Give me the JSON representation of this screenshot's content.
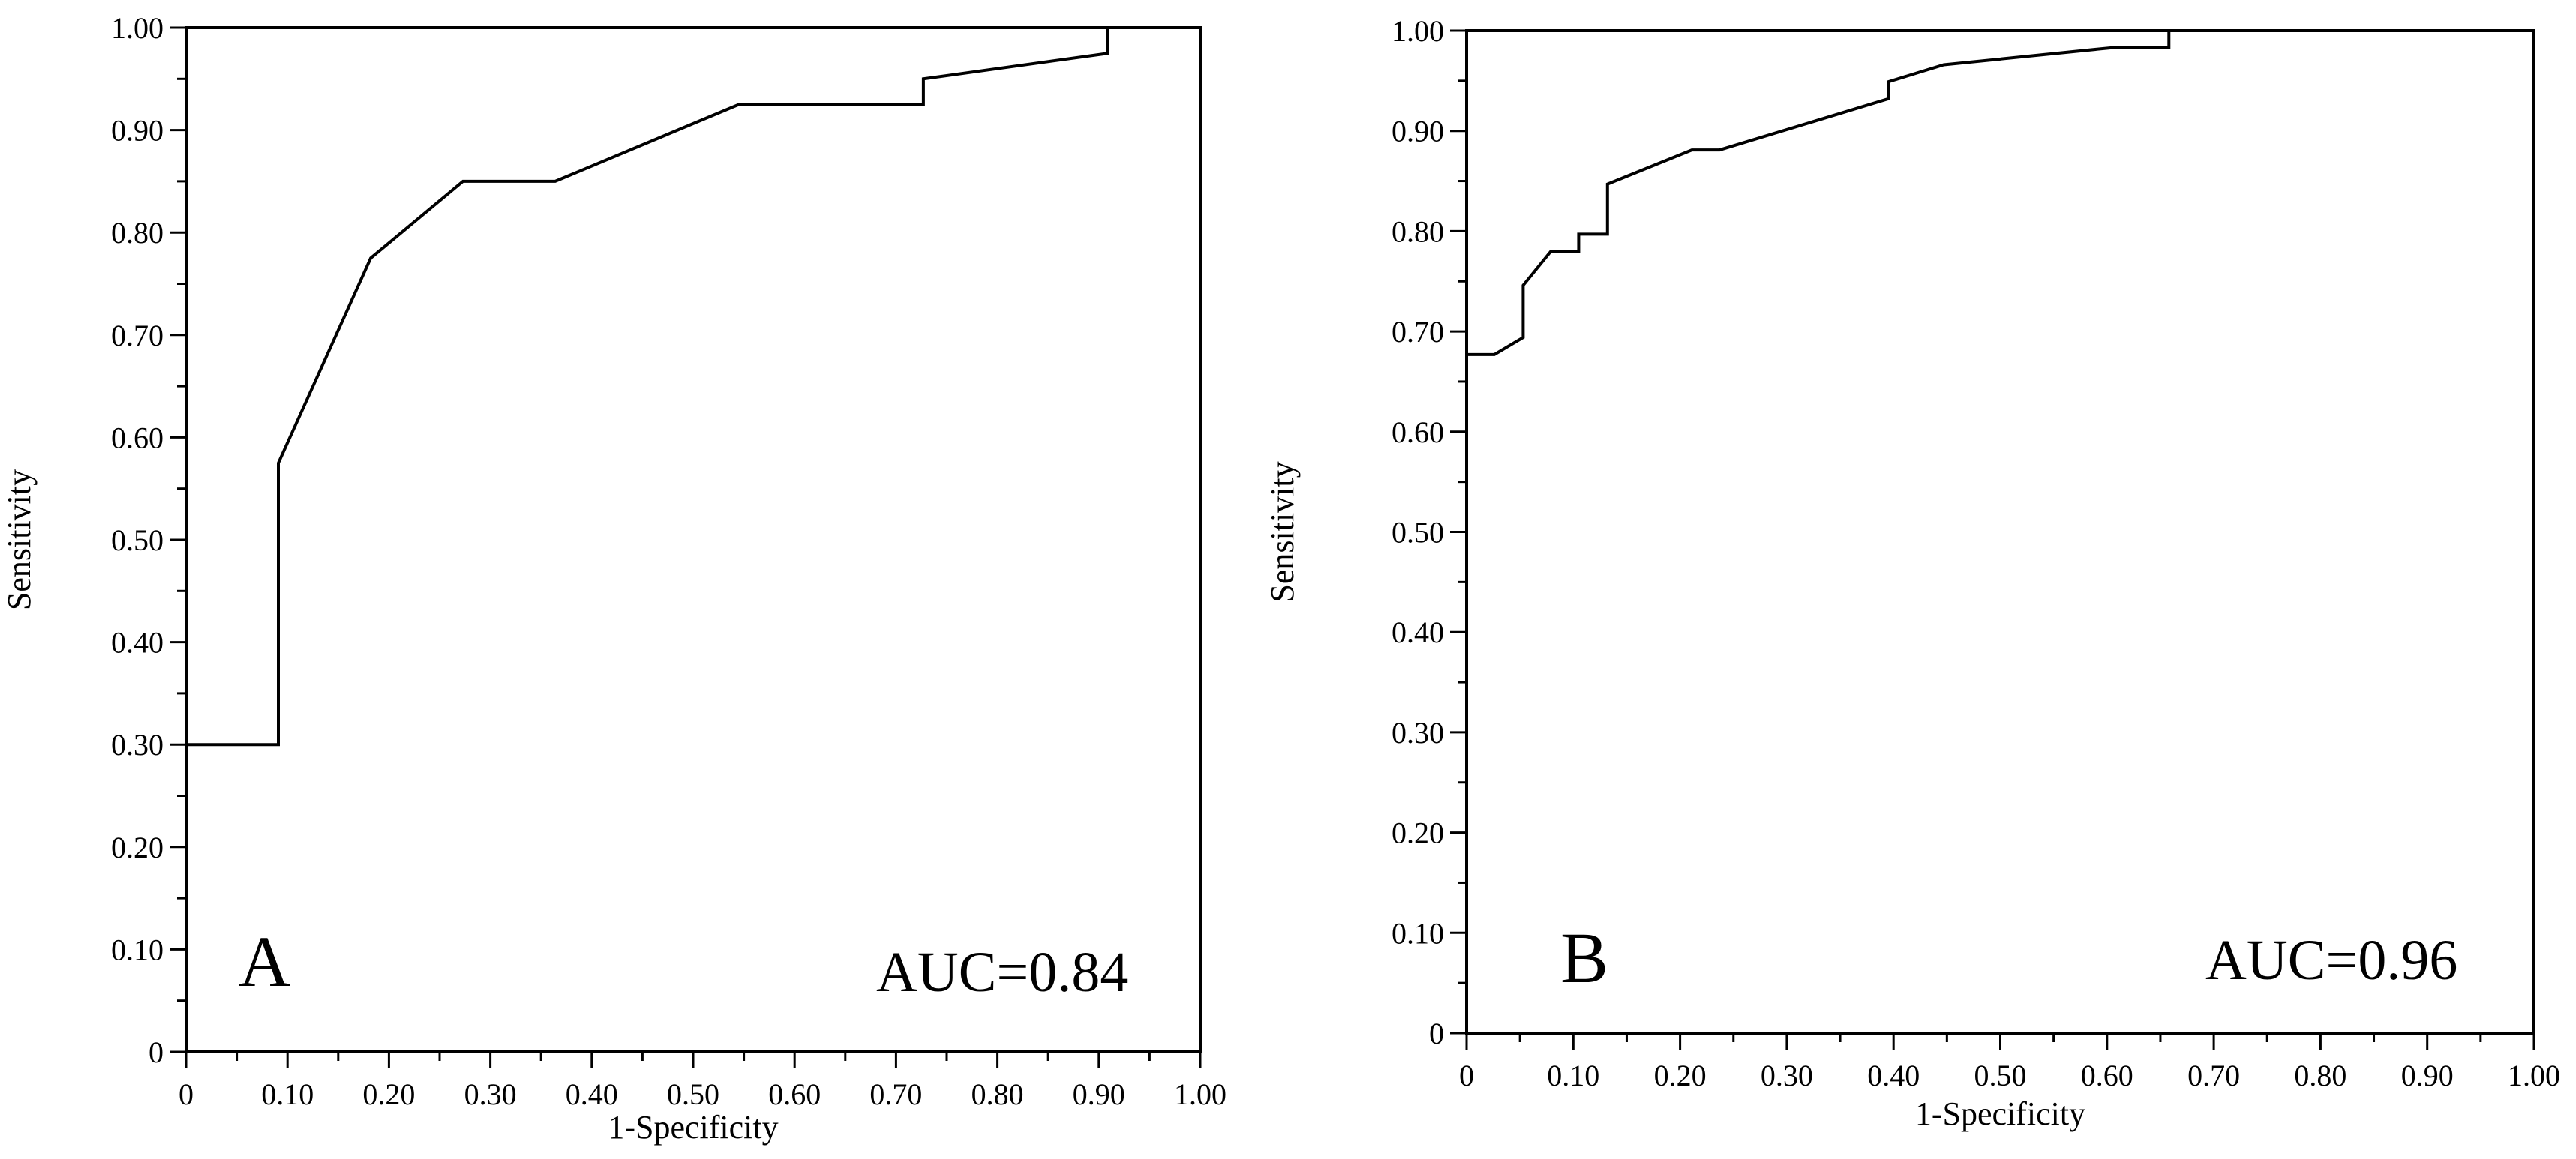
{
  "chart_data": [
    {
      "type": "line",
      "xlabel": "1-Specificity",
      "ylabel": "Sensitivity",
      "xlim": [
        0,
        1
      ],
      "ylim": [
        0,
        1
      ],
      "x_ticks": [
        "0",
        "0.10",
        "0.20",
        "0.30",
        "0.40",
        "0.50",
        "0.60",
        "0.70",
        "0.80",
        "0.90",
        "1.00"
      ],
      "y_ticks": [
        "0",
        "0.10",
        "0.20",
        "0.30",
        "0.40",
        "0.50",
        "0.60",
        "0.70",
        "0.80",
        "0.90",
        "1.00"
      ],
      "panel_label": "A",
      "annotation": "AUC=0.84",
      "series": [
        {
          "x": [
            0,
            0.091,
            0.091,
            0.182,
            0.273,
            0.364,
            0.545,
            0.727,
            0.727,
            0.909,
            0.909
          ],
          "y": [
            0.3,
            0.3,
            0.575,
            0.775,
            0.85,
            0.85,
            0.925,
            0.925,
            0.95,
            0.975,
            1.0
          ]
        }
      ]
    },
    {
      "type": "line",
      "xlabel": "1-Specificity",
      "ylabel": "Sensitivity",
      "xlim": [
        0,
        1
      ],
      "ylim": [
        0,
        1
      ],
      "x_ticks": [
        "0",
        "0.10",
        "0.20",
        "0.30",
        "0.40",
        "0.50",
        "0.60",
        "0.70",
        "0.80",
        "0.90",
        "1.00"
      ],
      "y_ticks": [
        "0",
        "0.10",
        "0.20",
        "0.30",
        "0.40",
        "0.50",
        "0.60",
        "0.70",
        "0.80",
        "0.90",
        "1.00"
      ],
      "panel_label": "B",
      "annotation": "AUC=0.96",
      "series": [
        {
          "x": [
            0,
            0.026,
            0.053,
            0.053,
            0.079,
            0.105,
            0.105,
            0.132,
            0.132,
            0.211,
            0.237,
            0.395,
            0.395,
            0.447,
            0.605,
            0.658,
            0.658
          ],
          "y": [
            0.677,
            0.677,
            0.694,
            0.746,
            0.78,
            0.78,
            0.797,
            0.797,
            0.847,
            0.881,
            0.881,
            0.932,
            0.949,
            0.966,
            0.983,
            0.983,
            1.0
          ]
        }
      ]
    }
  ]
}
